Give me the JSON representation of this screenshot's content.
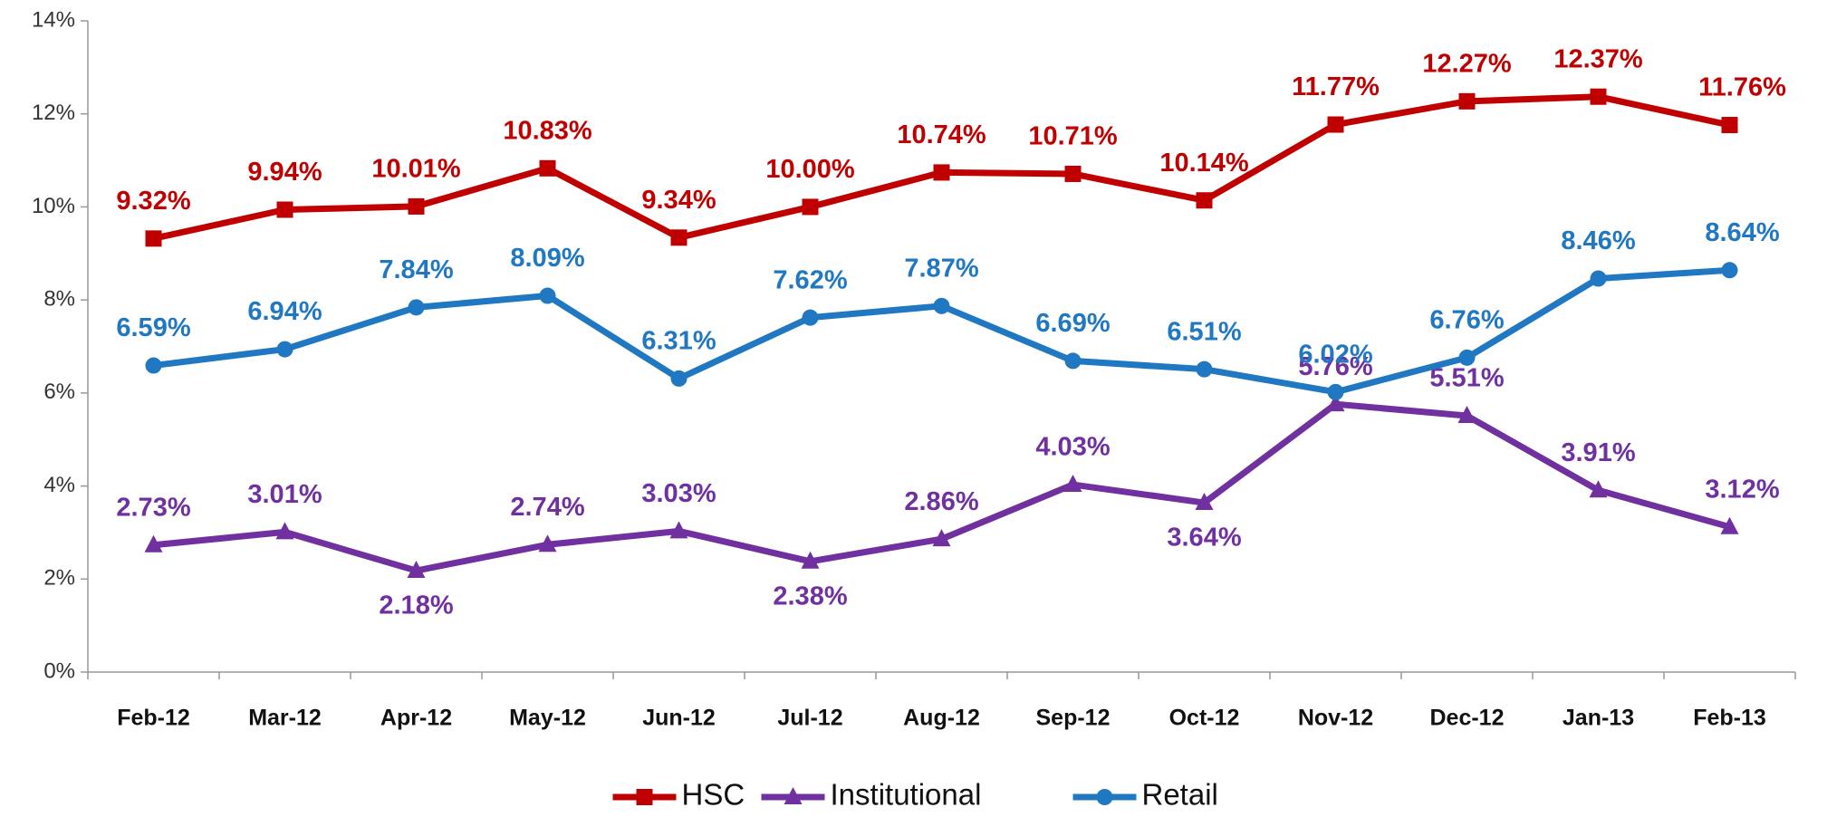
{
  "chart_data": {
    "type": "line",
    "categories": [
      "Feb-12",
      "Mar-12",
      "Apr-12",
      "May-12",
      "Jun-12",
      "Jul-12",
      "Aug-12",
      "Sep-12",
      "Oct-12",
      "Nov-12",
      "Dec-12",
      "Jan-13",
      "Feb-13"
    ],
    "series": [
      {
        "name": "HSC",
        "color": "#c00000",
        "marker": "square",
        "values": [
          9.32,
          9.94,
          10.01,
          10.83,
          9.34,
          10.0,
          10.74,
          10.71,
          10.14,
          11.77,
          12.27,
          12.37,
          11.76
        ],
        "value_labels": [
          "9.32%",
          "9.94%",
          "10.01%",
          "10.83%",
          "9.34%",
          "10.00%",
          "10.74%",
          "10.71%",
          "10.14%",
          "11.77%",
          "12.27%",
          "12.37%",
          "11.76%"
        ]
      },
      {
        "name": "Institutional",
        "color": "#7030a0",
        "marker": "triangle",
        "values": [
          2.73,
          3.01,
          2.18,
          2.74,
          3.03,
          2.38,
          2.86,
          4.03,
          3.64,
          5.76,
          5.51,
          3.91,
          3.12
        ],
        "value_labels": [
          "2.73%",
          "3.01%",
          "2.18%",
          "2.74%",
          "3.03%",
          "2.38%",
          "2.86%",
          "4.03%",
          "3.64%",
          "5.76%",
          "5.51%",
          "3.91%",
          "3.12%"
        ]
      },
      {
        "name": "Retail",
        "color": "#1f78c1",
        "marker": "circle",
        "values": [
          6.59,
          6.94,
          7.84,
          8.09,
          6.31,
          7.62,
          7.87,
          6.69,
          6.51,
          6.02,
          6.76,
          8.46,
          8.64
        ],
        "value_labels": [
          "6.59%",
          "6.94%",
          "7.84%",
          "8.09%",
          "6.31%",
          "7.62%",
          "7.87%",
          "6.69%",
          "6.51%",
          "6.02%",
          "6.76%",
          "8.46%",
          "8.64%"
        ]
      }
    ],
    "ylim": [
      0,
      14
    ],
    "yticks": [
      {
        "value": 0,
        "label": "0%"
      },
      {
        "value": 2,
        "label": "2%"
      },
      {
        "value": 4,
        "label": "4%"
      },
      {
        "value": 6,
        "label": "6%"
      },
      {
        "value": 8,
        "label": "8%"
      },
      {
        "value": 10,
        "label": "10%"
      },
      {
        "value": 12,
        "label": "12%"
      },
      {
        "value": 14,
        "label": "14%"
      }
    ],
    "grid": false,
    "legend": "bottom"
  }
}
